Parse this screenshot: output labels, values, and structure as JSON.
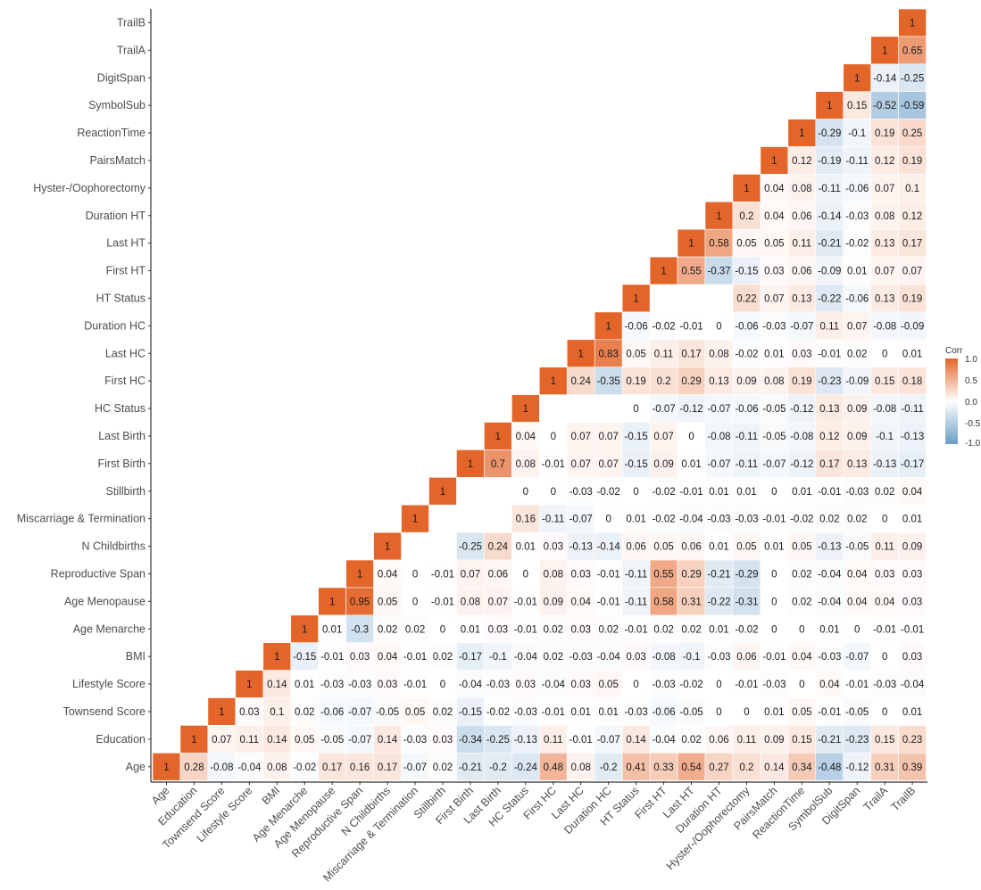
{
  "chart_data": {
    "type": "heatmap",
    "legend": {
      "title": "Corr",
      "ticks": [
        "1.0",
        "0.5",
        "0.0",
        "-0.5",
        "-1.0"
      ],
      "range": [
        -1,
        1
      ],
      "colors": {
        "low": "#6a9dc8",
        "mid": "#ffffff",
        "high": "#e3652a"
      }
    },
    "x_labels": [
      "Age",
      "Education",
      "Townsend Score",
      "Lifestyle Score",
      "BMI",
      "Age Menarche",
      "Age Menopause",
      "Reproductive Span",
      "N Childbirths",
      "Miscarriage & Termination",
      "Stillbirth",
      "First Birth",
      "Last Birth",
      "HC Status",
      "First HC",
      "Last HC",
      "Duration HC",
      "HT Status",
      "First HT",
      "Last HT",
      "Duration HT",
      "Hyster-/Oophorectomy",
      "PairsMatch",
      "ReactionTime",
      "SymbolSub",
      "DigitSpan",
      "TrailA",
      "TrailB"
    ],
    "rows": [
      {
        "label": "TrailB",
        "values": [
          1
        ]
      },
      {
        "label": "TrailA",
        "values": [
          1,
          0.65
        ]
      },
      {
        "label": "DigitSpan",
        "values": [
          1,
          -0.14,
          -0.25
        ]
      },
      {
        "label": "SymbolSub",
        "values": [
          1,
          0.15,
          -0.52,
          -0.59
        ]
      },
      {
        "label": "ReactionTime",
        "values": [
          1,
          -0.29,
          -0.1,
          0.19,
          0.25
        ]
      },
      {
        "label": "PairsMatch",
        "values": [
          1,
          0.12,
          -0.19,
          -0.11,
          0.12,
          0.19
        ]
      },
      {
        "label": "Hyster-/Oophorectomy",
        "values": [
          1,
          0.04,
          0.08,
          -0.11,
          -0.06,
          0.07,
          0.1
        ]
      },
      {
        "label": "Duration HT",
        "values": [
          1,
          0.2,
          0.04,
          0.06,
          -0.14,
          -0.03,
          0.08,
          0.12
        ]
      },
      {
        "label": "Last HT",
        "values": [
          1,
          0.58,
          0.05,
          0.05,
          0.11,
          -0.21,
          -0.02,
          0.13,
          0.17
        ]
      },
      {
        "label": "First HT",
        "values": [
          1,
          0.55,
          -0.37,
          -0.15,
          0.03,
          0.06,
          -0.09,
          0.01,
          0.07,
          0.07
        ]
      },
      {
        "label": "HT Status",
        "values": [
          1,
          null,
          null,
          null,
          0.22,
          0.07,
          0.13,
          -0.22,
          -0.06,
          0.13,
          0.19
        ]
      },
      {
        "label": "Duration HC",
        "values": [
          1,
          -0.06,
          -0.02,
          -0.01,
          0,
          -0.06,
          -0.03,
          -0.07,
          0.11,
          0.07,
          -0.08,
          -0.09
        ]
      },
      {
        "label": "Last HC",
        "values": [
          1,
          0.83,
          0.05,
          0.11,
          0.17,
          0.08,
          -0.02,
          0.01,
          0.03,
          -0.01,
          0.02,
          0,
          0.01
        ]
      },
      {
        "label": "First HC",
        "values": [
          1,
          0.24,
          -0.35,
          0.19,
          0.2,
          0.29,
          0.13,
          0.09,
          0.08,
          0.19,
          -0.23,
          -0.09,
          0.15,
          0.18
        ]
      },
      {
        "label": "HC Status",
        "values": [
          1,
          null,
          null,
          null,
          0,
          -0.07,
          -0.12,
          -0.07,
          -0.06,
          -0.05,
          -0.12,
          0.13,
          0.09,
          -0.08,
          -0.11
        ]
      },
      {
        "label": "Last Birth",
        "values": [
          1,
          0.04,
          0,
          0.07,
          0.07,
          -0.15,
          0.07,
          0,
          -0.08,
          -0.11,
          -0.05,
          -0.08,
          0.12,
          0.09,
          -0.1,
          -0.13
        ]
      },
      {
        "label": "First Birth",
        "values": [
          1,
          0.7,
          0.08,
          -0.01,
          0.07,
          0.07,
          -0.15,
          0.09,
          0.01,
          -0.07,
          -0.11,
          -0.07,
          -0.12,
          0.17,
          0.13,
          -0.13,
          -0.17
        ]
      },
      {
        "label": "Stillbirth",
        "values": [
          1,
          null,
          null,
          0,
          0,
          -0.03,
          -0.02,
          0,
          -0.02,
          -0.01,
          0.01,
          0.01,
          0,
          0.01,
          -0.01,
          -0.03,
          0.02,
          0.04
        ]
      },
      {
        "label": "Miscarriage & Termination",
        "values": [
          1,
          null,
          null,
          null,
          0.16,
          -0.11,
          -0.07,
          0,
          0.01,
          -0.02,
          -0.04,
          -0.03,
          -0.03,
          -0.01,
          -0.02,
          0.02,
          0.02,
          0,
          0.01
        ]
      },
      {
        "label": "N Childbirths",
        "values": [
          1,
          null,
          null,
          -0.25,
          0.24,
          0.01,
          0.03,
          -0.13,
          -0.14,
          0.06,
          0.05,
          0.06,
          0.01,
          0.05,
          0.01,
          0.05,
          -0.13,
          -0.05,
          0.11,
          0.09
        ]
      },
      {
        "label": "Reproductive Span",
        "values": [
          1,
          0.04,
          0,
          -0.01,
          0.07,
          0.06,
          0,
          0.08,
          0.03,
          -0.01,
          -0.11,
          0.55,
          0.29,
          -0.21,
          -0.29,
          0,
          0.02,
          -0.04,
          0.04,
          0.03,
          0.03
        ]
      },
      {
        "label": "Age Menopause",
        "values": [
          1,
          0.95,
          0.05,
          0,
          -0.01,
          0.08,
          0.07,
          -0.01,
          0.09,
          0.04,
          -0.01,
          -0.11,
          0.58,
          0.31,
          -0.22,
          -0.31,
          0,
          0.02,
          -0.04,
          0.04,
          0.04,
          0.03
        ]
      },
      {
        "label": "Age Menarche",
        "values": [
          1,
          0.01,
          -0.3,
          0.02,
          0.02,
          0,
          0.01,
          0.03,
          -0.01,
          0.02,
          0.03,
          0.02,
          -0.01,
          0.02,
          0.02,
          0.01,
          -0.02,
          0,
          0,
          0.01,
          0,
          -0.01,
          -0.01
        ]
      },
      {
        "label": "BMI",
        "values": [
          1,
          -0.15,
          -0.01,
          0.03,
          0.04,
          -0.01,
          0.02,
          -0.17,
          -0.1,
          -0.04,
          0.02,
          -0.03,
          -0.04,
          0.03,
          -0.08,
          -0.1,
          -0.03,
          0.06,
          -0.01,
          0.04,
          -0.03,
          -0.07,
          0,
          0.03
        ]
      },
      {
        "label": "Lifestyle Score",
        "values": [
          1,
          0.14,
          0.01,
          -0.03,
          -0.03,
          0.03,
          -0.01,
          0,
          -0.04,
          -0.03,
          0.03,
          -0.04,
          0.03,
          0.05,
          0,
          -0.03,
          -0.02,
          0,
          -0.01,
          -0.03,
          0,
          0.04,
          -0.01,
          -0.03,
          -0.04
        ]
      },
      {
        "label": "Townsend Score",
        "values": [
          1,
          0.03,
          0.1,
          0.02,
          -0.06,
          -0.07,
          -0.05,
          0.05,
          0.02,
          -0.15,
          -0.02,
          -0.03,
          -0.01,
          0.01,
          0.01,
          -0.03,
          -0.06,
          -0.05,
          0,
          0,
          0.01,
          0.05,
          -0.01,
          -0.05,
          0,
          0.01
        ]
      },
      {
        "label": "Education",
        "values": [
          1,
          0.07,
          0.11,
          0.14,
          0.05,
          -0.05,
          -0.07,
          0.14,
          -0.03,
          0.03,
          -0.34,
          -0.25,
          -0.13,
          0.11,
          -0.01,
          -0.07,
          0.14,
          -0.04,
          0.02,
          0.06,
          0.11,
          0.09,
          0.15,
          -0.21,
          -0.23,
          0.15,
          0.23
        ]
      },
      {
        "label": "Age",
        "values": [
          1,
          0.28,
          -0.08,
          -0.04,
          0.08,
          -0.02,
          0.17,
          0.16,
          0.17,
          -0.07,
          0.02,
          -0.21,
          -0.2,
          -0.24,
          0.48,
          0.08,
          -0.2,
          0.41,
          0.33,
          0.54,
          0.27,
          0.2,
          0.14,
          0.34,
          -0.48,
          -0.12,
          0.31,
          0.39
        ]
      }
    ]
  }
}
